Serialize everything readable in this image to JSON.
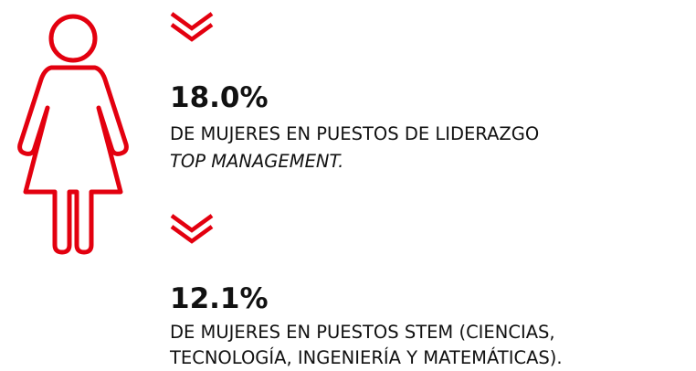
{
  "stats": [
    {
      "value": "18.0%",
      "lines": [
        "DE MUJERES EN PUESTOS DE LIDERAZGO",
        "TOP MANAGEMENT."
      ]
    },
    {
      "value": "12.1%",
      "lines": [
        "DE MUJERES EN PUESTOS STEM (CIENCIAS,",
        "TECNOLOGÍA, INGENIERÍA Y MATEMÁTICAS)."
      ]
    }
  ]
}
